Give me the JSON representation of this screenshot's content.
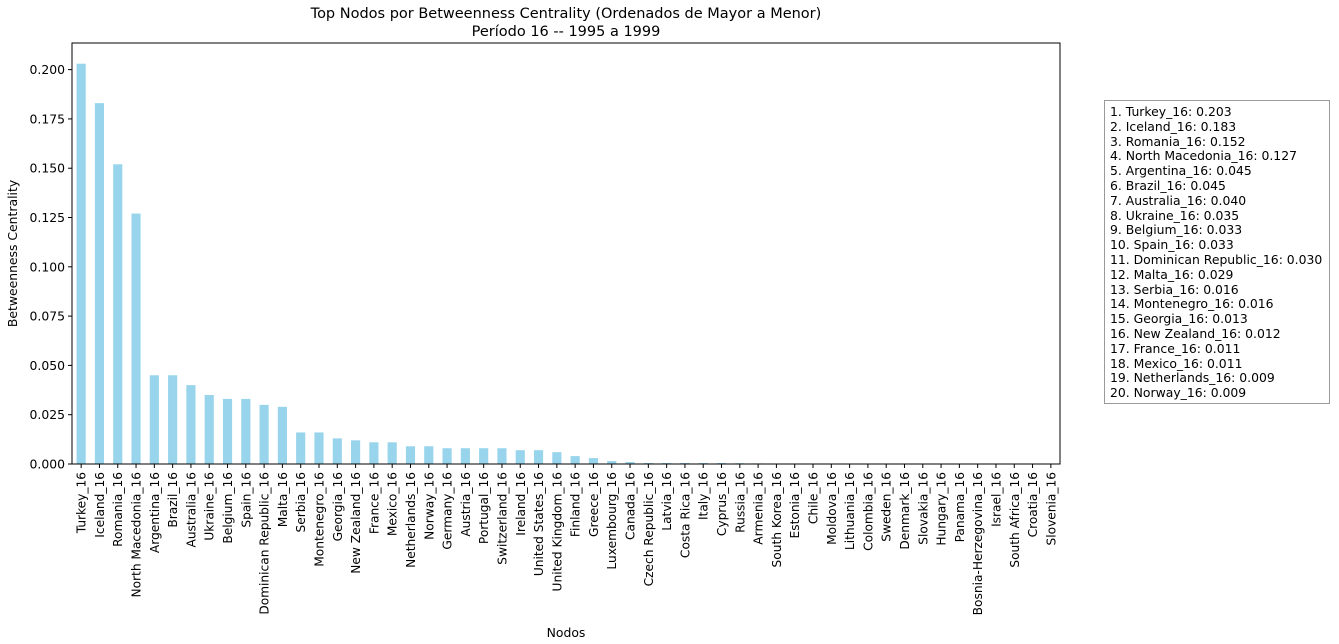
{
  "chart_data": {
    "type": "bar",
    "title": "Top Nodos por Betweenness Centrality (Ordenados de Mayor a Menor)",
    "subtitle": "Período 16 -- 1995 a 1999",
    "xlabel": "Nodos",
    "ylabel": "Betweenness Centrality",
    "ylim": [
      0,
      0.2135
    ],
    "yticks": [
      "0.000",
      "0.025",
      "0.050",
      "0.075",
      "0.100",
      "0.125",
      "0.150",
      "0.175",
      "0.200"
    ],
    "bar_color": "#98d4ec",
    "grid": false,
    "categories": [
      "Turkey_16",
      "Iceland_16",
      "Romania_16",
      "North Macedonia_16",
      "Argentina_16",
      "Brazil_16",
      "Australia_16",
      "Ukraine_16",
      "Belgium_16",
      "Spain_16",
      "Dominican Republic_16",
      "Malta_16",
      "Serbia_16",
      "Montenegro_16",
      "Georgia_16",
      "New Zealand_16",
      "France_16",
      "Mexico_16",
      "Netherlands_16",
      "Norway_16",
      "Germany_16",
      "Austria_16",
      "Portugal_16",
      "Switzerland_16",
      "Ireland_16",
      "United States_16",
      "United Kingdom_16",
      "Finland_16",
      "Greece_16",
      "Luxembourg_16",
      "Canada_16",
      "Czech Republic_16",
      "Latvia_16",
      "Costa Rica_16",
      "Italy_16",
      "Cyprus_16",
      "Russia_16",
      "Armenia_16",
      "South Korea_16",
      "Estonia_16",
      "Chile_16",
      "Moldova_16",
      "Lithuania_16",
      "Colombia_16",
      "Sweden_16",
      "Denmark_16",
      "Slovakia_16",
      "Hungary_16",
      "Panama_16",
      "Bosnia-Herzegovina_16",
      "Israel_16",
      "South Africa_16",
      "Croatia_16",
      "Slovenia_16"
    ],
    "values": [
      0.203,
      0.183,
      0.152,
      0.127,
      0.045,
      0.045,
      0.04,
      0.035,
      0.033,
      0.033,
      0.03,
      0.029,
      0.016,
      0.016,
      0.013,
      0.012,
      0.011,
      0.011,
      0.009,
      0.009,
      0.008,
      0.008,
      0.008,
      0.008,
      0.007,
      0.007,
      0.006,
      0.004,
      0.003,
      0.0015,
      0.001,
      0.0005,
      0.0005,
      0.0005,
      0.0005,
      0.0005,
      0.0004,
      0.0003,
      0.0002,
      0.0002,
      0.0002,
      0.0002,
      0.0002,
      0.0002,
      0.0001,
      0.0001,
      0.0001,
      0.0001,
      0.0001,
      0.0001,
      0.0001,
      0.0001,
      0.0001,
      0.0001
    ],
    "legend_lines": [
      "1. Turkey_16: 0.203",
      "2. Iceland_16: 0.183",
      "3. Romania_16: 0.152",
      "4. North Macedonia_16: 0.127",
      "5. Argentina_16: 0.045",
      "6. Brazil_16: 0.045",
      "7. Australia_16: 0.040",
      "8. Ukraine_16: 0.035",
      "9. Belgium_16: 0.033",
      "10. Spain_16: 0.033",
      "11. Dominican Republic_16: 0.030",
      "12. Malta_16: 0.029",
      "13. Serbia_16: 0.016",
      "14. Montenegro_16: 0.016",
      "15. Georgia_16: 0.013",
      "16. New Zealand_16: 0.012",
      "17. France_16: 0.011",
      "18. Mexico_16: 0.011",
      "19. Netherlands_16: 0.009",
      "20. Norway_16: 0.009"
    ]
  }
}
